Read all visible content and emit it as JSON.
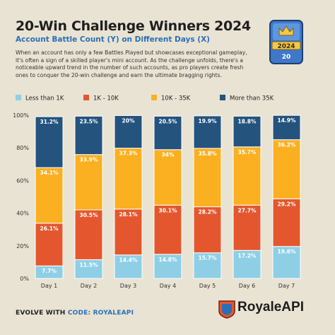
{
  "header": {
    "title": "20-Win Challenge Winners 2024",
    "subtitle": "Account Battle Count (Y) on Different Days (X)",
    "description": "When an account has only a few Battles Played but showcases exceptional gameplay, it's often a sign of a skilled player's mini account. As the challenge unfolds, there's a noticeable upward trend in the number of such accounts, as pro players create fresh ones to conquer the 20-win challenge and earn the ultimate bragging rights."
  },
  "badge": {
    "year": "2024",
    "wins": "20"
  },
  "footer": {
    "prefix": "EVOLVE WITH ",
    "code": "CODE: ROYALEAPI",
    "brand": "RoyaleAPI"
  },
  "colors": {
    "background": "#e9e3d3",
    "accent": "#2a6fb8"
  },
  "chart_data": {
    "type": "bar",
    "stacked": true,
    "categories": [
      "Day 1",
      "Day 2",
      "Day 3",
      "Day 4",
      "Day 5",
      "Day 6",
      "Day 7"
    ],
    "series": [
      {
        "name": "Less than 1K",
        "color": "#8ecfe6",
        "values": [
          7.7,
          11.5,
          14.4,
          14.8,
          15.7,
          17.2,
          19.6
        ]
      },
      {
        "name": "1K - 10K",
        "color": "#e4572e",
        "values": [
          26.1,
          30.5,
          28.1,
          30.1,
          28.2,
          27.7,
          29.2
        ]
      },
      {
        "name": "10K - 35K",
        "color": "#fbb021",
        "values": [
          34.1,
          33.9,
          37.3,
          34.0,
          35.8,
          35.7,
          36.2
        ]
      },
      {
        "name": "More than 35K",
        "color": "#24537e",
        "values": [
          31.2,
          23.5,
          20.0,
          20.5,
          19.9,
          18.8,
          14.9
        ]
      }
    ],
    "labels": [
      [
        "7.7%",
        "11.5%",
        "14.4%",
        "14.8%",
        "15.7%",
        "17.2%",
        "19.6%"
      ],
      [
        "26.1%",
        "30.5%",
        "28.1%",
        "30.1%",
        "28.2%",
        "27.7%",
        "29.2%"
      ],
      [
        "34.1%",
        "33.9%",
        "37.3%",
        "34%",
        "35.8%",
        "35.7%",
        "36.2%"
      ],
      [
        "31.2%",
        "23.5%",
        "20%",
        "20.5%",
        "19.9%",
        "18.8%",
        "14.9%"
      ]
    ],
    "yticks": [
      "0%",
      "20%",
      "40%",
      "60%",
      "80%",
      "100%"
    ],
    "ylim": [
      0,
      100
    ],
    "legend_position": "top",
    "grid": false
  }
}
